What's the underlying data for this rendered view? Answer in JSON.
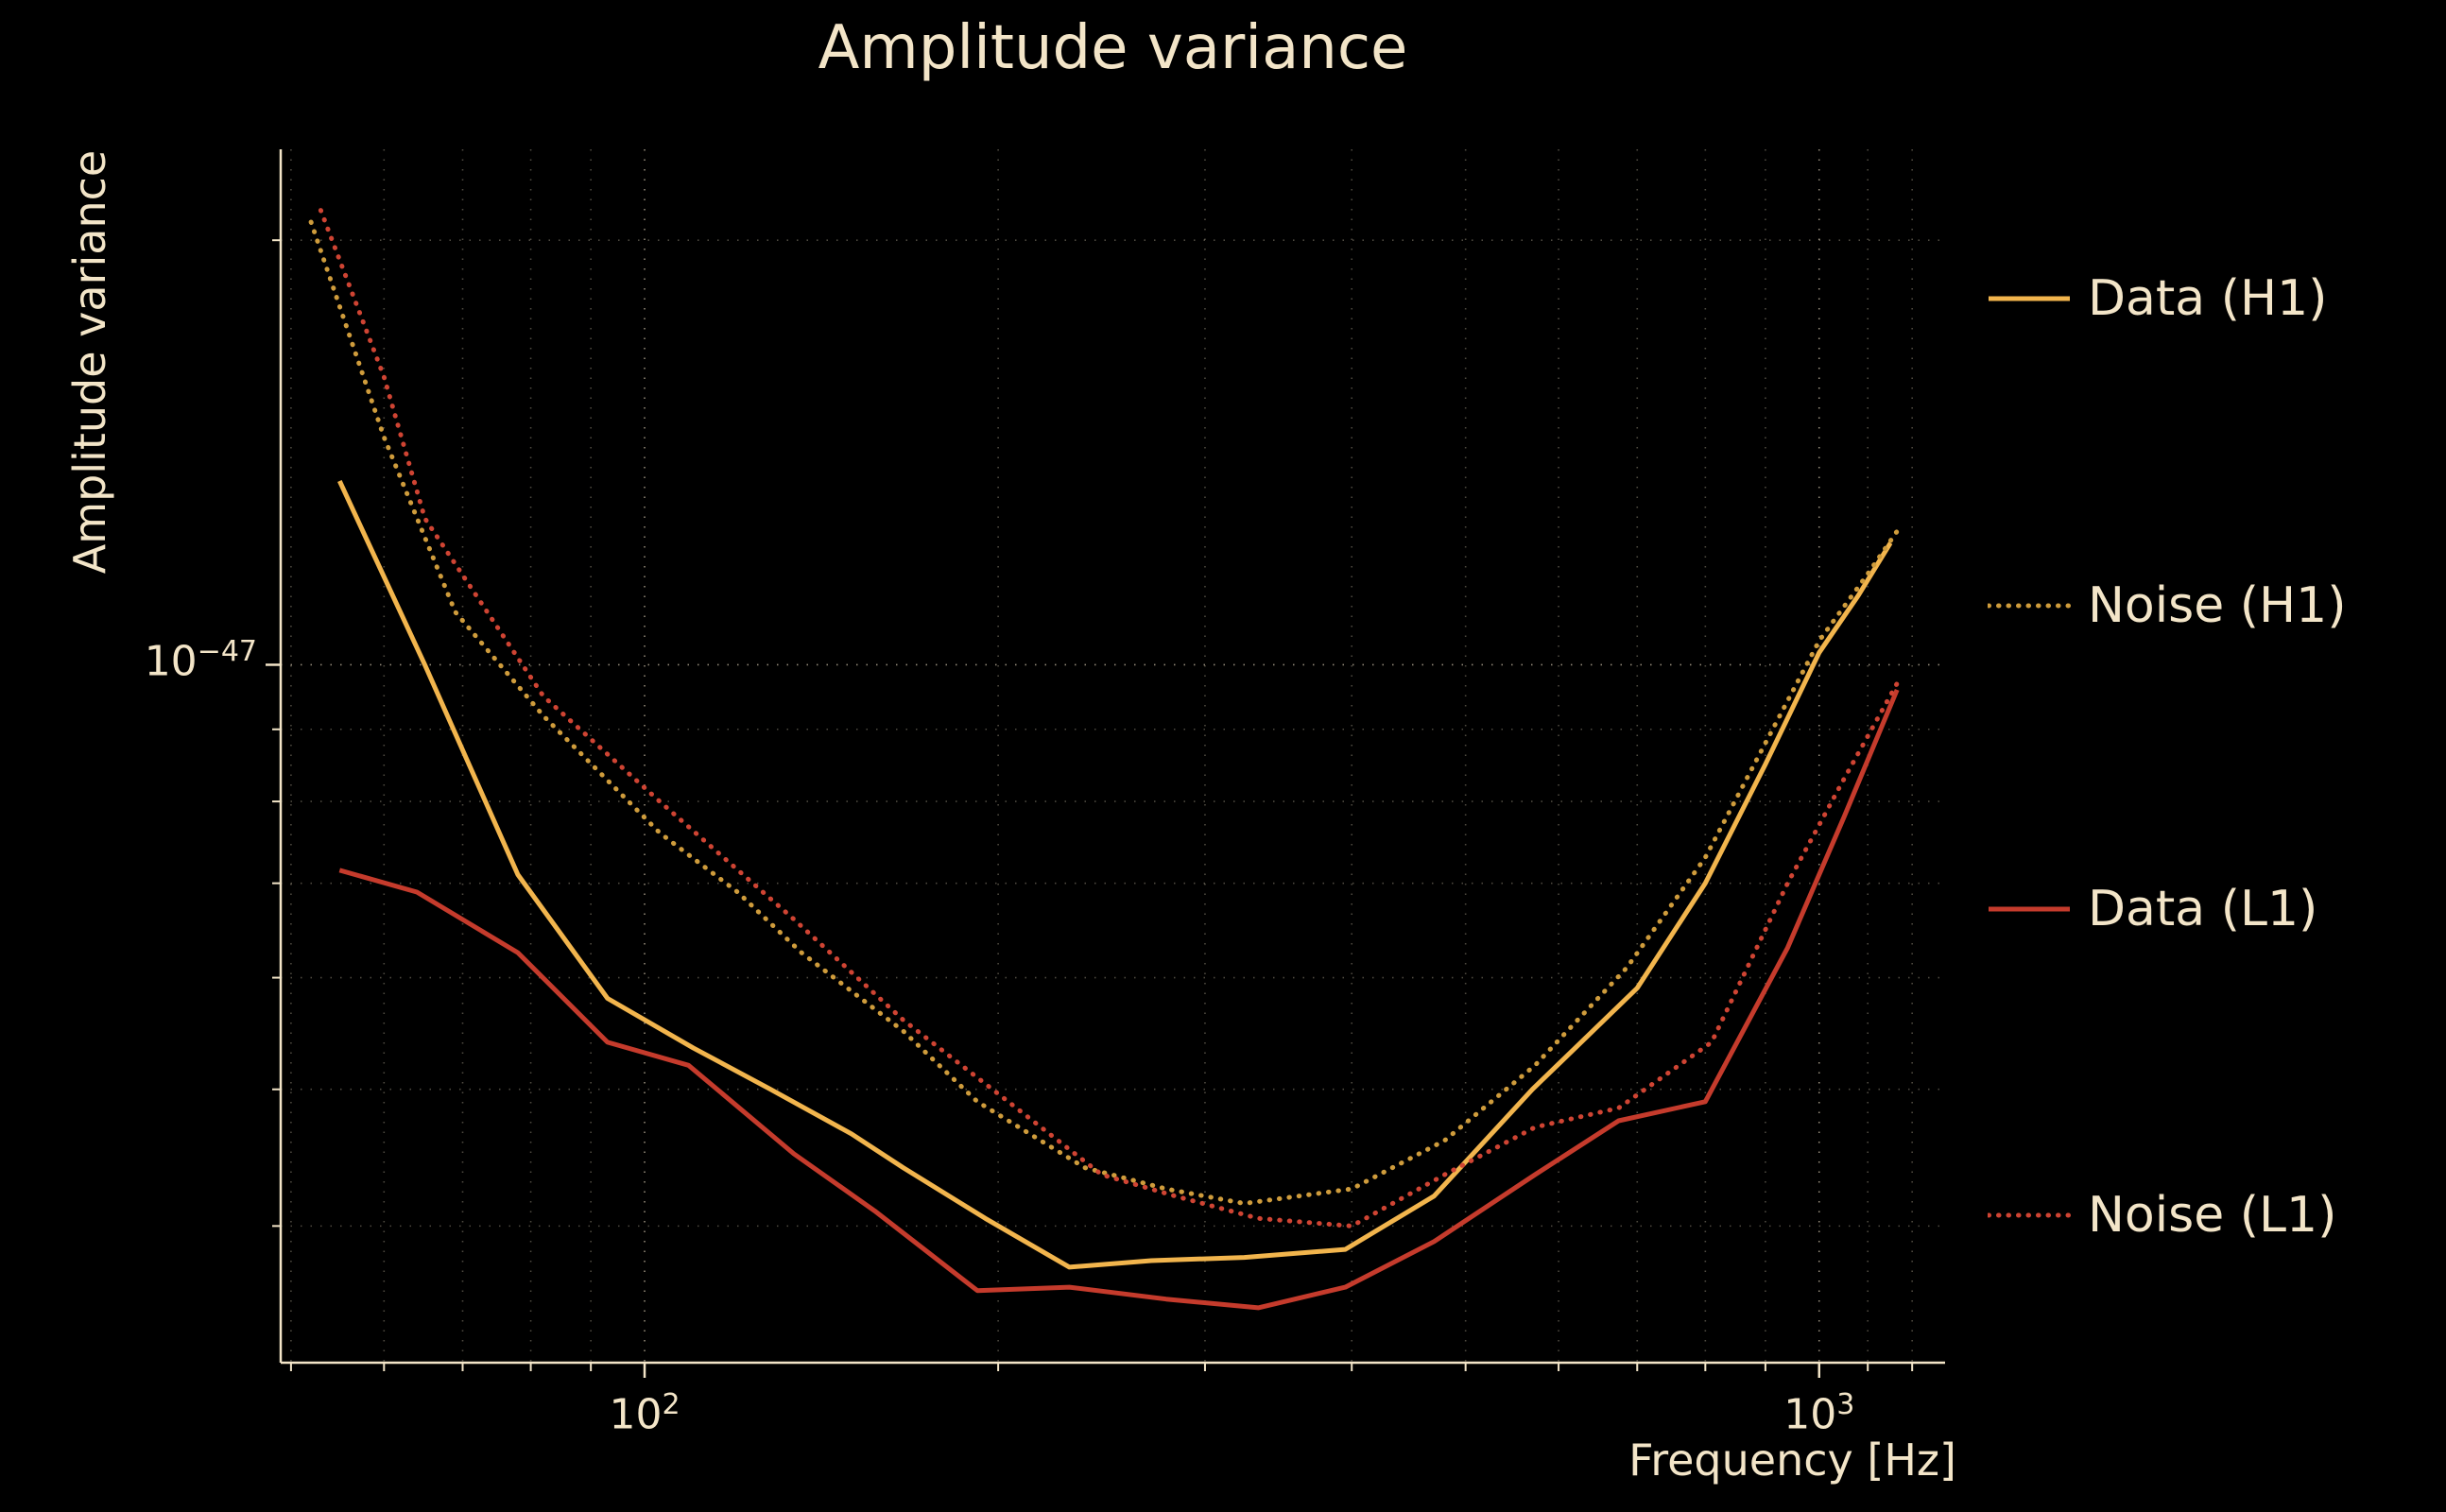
{
  "figure": {
    "colors": {
      "background": "#000000",
      "text": "#f3e5c8",
      "grid": "#f3e5c8",
      "spine": "#f3e5c8"
    }
  },
  "chart_data": {
    "type": "line",
    "title": "Amplitude variance",
    "xlabel": "Frequency [Hz]",
    "ylabel": "Amplitude variance",
    "x_scale": "log",
    "y_scale": "log",
    "xlim": [
      49,
      1280
    ],
    "ylim": [
      3.2e-48,
      2.32e-47
    ],
    "grid": true,
    "legend_position": "right-outside",
    "x_ticks": [
      {
        "base": "10",
        "exp": "2",
        "value": 100
      },
      {
        "base": "10",
        "exp": "3",
        "value": 1000
      }
    ],
    "y_ticks": [
      {
        "base": "10",
        "exp": "−47",
        "value": 1e-47
      }
    ],
    "x_gridlines": [
      50,
      60,
      70,
      80,
      90,
      100,
      200,
      300,
      400,
      500,
      600,
      700,
      800,
      900,
      1000,
      1100,
      1200
    ],
    "x_major": [
      100,
      1000
    ],
    "y_gridlines": [
      4e-48,
      5e-48,
      6e-48,
      7e-48,
      8e-48,
      9e-48,
      1e-47,
      2e-47
    ],
    "y_major": [
      1e-47
    ],
    "series": [
      {
        "name": "Data (H1)",
        "color": "#f2b54d",
        "style": "solid",
        "x": [
          55,
          65,
          78,
          93,
          110,
          128,
          150,
          166,
          195,
          230,
          270,
          324,
          395,
          470,
          570,
          700,
          800,
          900,
          1000,
          1080,
          1150
        ],
        "y": [
          1.35e-47,
          1e-47,
          7.1e-48,
          5.8e-48,
          5.35e-48,
          5e-48,
          4.65e-48,
          4.4e-48,
          4.05e-48,
          3.74e-48,
          3.78e-48,
          3.8e-48,
          3.85e-48,
          4.2e-48,
          5e-48,
          5.9e-48,
          7e-48,
          8.5e-48,
          1.02e-47,
          1.12e-47,
          1.22e-47
        ]
      },
      {
        "name": "Noise (H1)",
        "color": "#cf9c3c",
        "style": "dotted",
        "x": [
          52,
          60,
          69,
          82,
          103,
          120,
          136,
          166,
          192,
          237,
          278,
          324,
          400,
          480,
          573,
          686,
          800,
          900,
          1000,
          1100,
          1170
        ],
        "y": [
          2.06e-47,
          1.45e-47,
          1.09e-47,
          9.2e-48,
          7.6e-48,
          6.9e-48,
          6.25e-48,
          5.5e-48,
          4.9e-48,
          4.4e-48,
          4.25e-48,
          4.15e-48,
          4.25e-48,
          4.6e-48,
          5.2e-48,
          6.1e-48,
          7.3e-48,
          8.8e-48,
          1.04e-47,
          1.16e-47,
          1.25e-47
        ]
      },
      {
        "name": "Data (L1)",
        "color": "#c53b2c",
        "style": "solid",
        "x": [
          55,
          64,
          78,
          93,
          109,
          134,
          157,
          192,
          230,
          278,
          333,
          395,
          470,
          573,
          675,
          800,
          940,
          1050,
          1165
        ],
        "y": [
          7.15e-48,
          6.9e-48,
          6.25e-48,
          5.4e-48,
          5.2e-48,
          4.5e-48,
          4.1e-48,
          3.6e-48,
          3.62e-48,
          3.55e-48,
          3.5e-48,
          3.62e-48,
          3.9e-48,
          4.35e-48,
          4.75e-48,
          4.9e-48,
          6.3e-48,
          7.8e-48,
          9.6e-48
        ]
      },
      {
        "name": "Noise (L1)",
        "color": "#cf4433",
        "style": "dotted",
        "x": [
          53,
          60,
          65,
          82,
          103,
          134,
          166,
          204,
          245,
          283,
          333,
          400,
          480,
          573,
          675,
          810,
          940,
          1050,
          1165
        ],
        "y": [
          2.1e-47,
          1.6e-47,
          1.27e-47,
          9.5e-48,
          8e-48,
          6.6e-48,
          5.6e-48,
          4.9e-48,
          4.35e-48,
          4.2e-48,
          4.05e-48,
          4e-48,
          4.35e-48,
          4.7e-48,
          4.85e-48,
          5.4e-48,
          7e-48,
          8.3e-48,
          9.7e-48
        ]
      }
    ]
  }
}
